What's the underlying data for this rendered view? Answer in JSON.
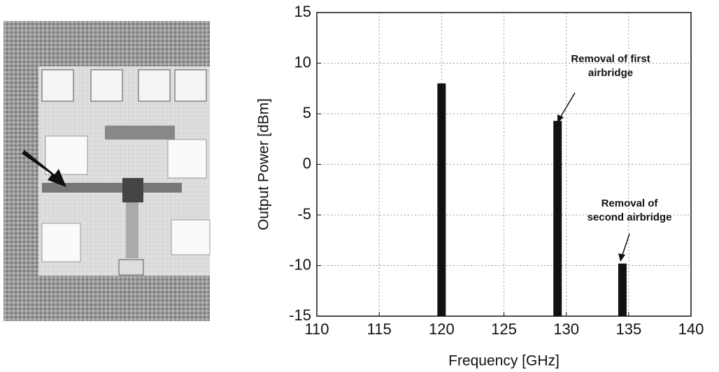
{
  "chart_data": {
    "type": "bar",
    "x_label": "Frequency [GHz]",
    "y_label": "Output Power [dBm]",
    "x": [
      120,
      129.3,
      134.5
    ],
    "values": [
      8,
      4.3,
      -9.8
    ],
    "color": "#111111",
    "xlim": [
      110,
      140
    ],
    "xticks": [
      110,
      115,
      120,
      125,
      130,
      135,
      140
    ],
    "ylim": [
      -15,
      15
    ],
    "yticks": [
      -15,
      -10,
      -5,
      0,
      5,
      10,
      15
    ],
    "grid": true,
    "annotations": [
      {
        "lines": [
          "Removal of first",
          "airbridge"
        ]
      },
      {
        "lines": [
          "Removal of",
          "second airbridge"
        ]
      }
    ]
  }
}
